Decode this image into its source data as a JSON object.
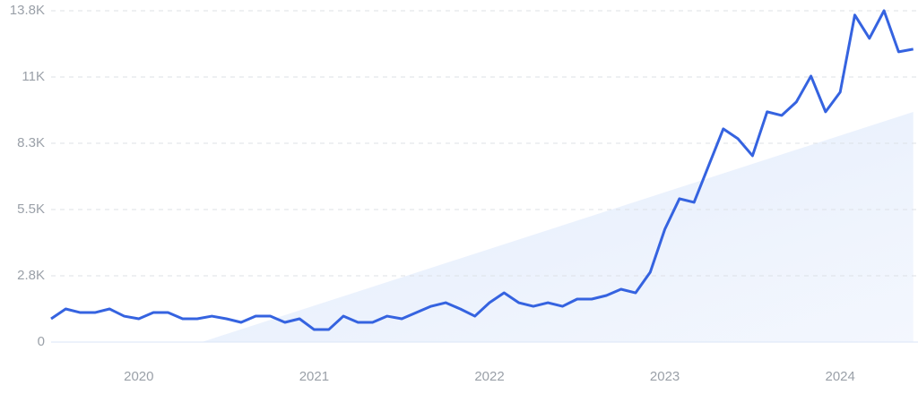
{
  "chart_data": {
    "type": "line",
    "categories": [
      null,
      null,
      null,
      null,
      null,
      null,
      "2020",
      null,
      null,
      null,
      null,
      null,
      null,
      null,
      null,
      null,
      null,
      null,
      "2021",
      null,
      null,
      null,
      null,
      null,
      null,
      null,
      null,
      null,
      null,
      null,
      "2022",
      null,
      null,
      null,
      null,
      null,
      null,
      null,
      null,
      null,
      null,
      null,
      "2023",
      null,
      null,
      null,
      null,
      null,
      null,
      null,
      null,
      null,
      null,
      null,
      "2024",
      null,
      null,
      null,
      null,
      null
    ],
    "series": [
      {
        "color": "#3563e0",
        "values": [
          970,
          1380,
          1230,
          1230,
          1380,
          1080,
          970,
          1230,
          1230,
          970,
          970,
          1080,
          970,
          820,
          1080,
          1080,
          820,
          970,
          520,
          520,
          1080,
          820,
          820,
          1080,
          970,
          1230,
          1490,
          1640,
          1380,
          1080,
          1640,
          2050,
          1640,
          1490,
          1640,
          1490,
          1790,
          1790,
          1940,
          2200,
          2050,
          2910,
          4700,
          5970,
          5820,
          7350,
          8880,
          8470,
          7760,
          9590,
          9440,
          10000,
          11080,
          9590,
          10410,
          13620,
          12650,
          13800,
          12090,
          12200
        ]
      }
    ],
    "trend": [
      -2030,
      9585
    ],
    "ylim": [
      0,
      13800
    ],
    "yticks": [
      0,
      {
        "value": 2760,
        "label": "2.8K"
      },
      {
        "value": 5520,
        "label": "5.5K"
      },
      {
        "value": 8280,
        "label": "8.3K"
      },
      {
        "value": 11040,
        "label": "11K"
      },
      {
        "value": 13800,
        "label": "13.8K"
      }
    ],
    "grid": true
  }
}
